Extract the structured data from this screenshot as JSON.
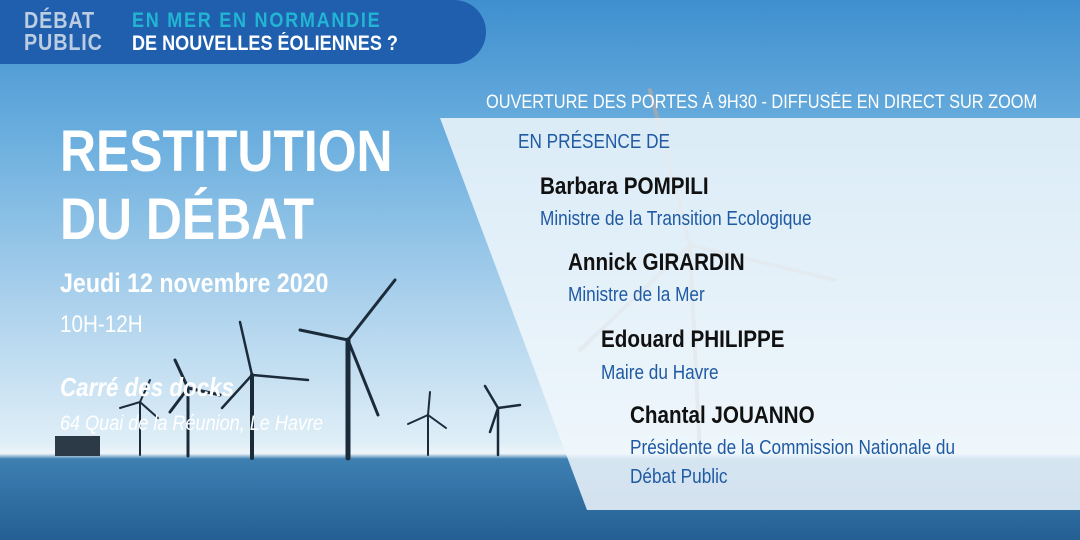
{
  "header": {
    "logo_line1": "DÉBAT",
    "logo_line2": "PUBLIC",
    "subtitle": "EN MER EN NORMANDIE",
    "title": "DE NOUVELLES ÉOLIENNES ?",
    "color": "#1f5fae",
    "accent": "#22b5d3"
  },
  "banner": "OUVERTURE DES PORTES À 9H30  - DIFFUSÉE EN DIRECT SUR ZOOM",
  "event": {
    "title_line1": "RESTITUTION",
    "title_line2": "DU DÉBAT",
    "date": "Jeudi 12 novembre 2020",
    "time": "10H-12H",
    "venue": "Carré des docks",
    "address": "64 Quai de la Réunion, Le Havre"
  },
  "presence_label": "EN PRÉSENCE DE",
  "speakers": [
    {
      "name": "Barbara POMPILI",
      "role": "Ministre de la Transition Ecologique"
    },
    {
      "name": "Annick GIRARDIN",
      "role": "Ministre de la Mer"
    },
    {
      "name": "Edouard PHILIPPE",
      "role": "Maire du Havre"
    },
    {
      "name": "Chantal JOUANNO",
      "role": "Présidente de la Commission Nationale du",
      "role2": "Débat Public"
    }
  ]
}
